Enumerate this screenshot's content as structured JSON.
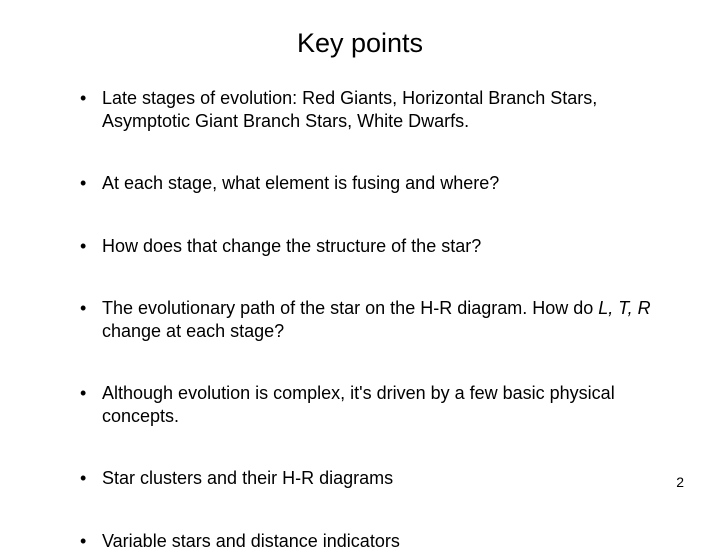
{
  "slide": {
    "title": "Key points",
    "bullets": [
      "Late stages of evolution: Red Giants, Horizontal Branch Stars, Asymptotic Giant Branch Stars, White Dwarfs.",
      "At each stage, what element is fusing and where?",
      "How does that change the structure of the star?",
      "The evolutionary path of the star on the H-R diagram.  How do L, T, R change at each stage?",
      "Although evolution is complex, it's driven by a few basic physical concepts.",
      "Star clusters and their H-R diagrams",
      "Variable stars and distance indicators"
    ],
    "page_number": "2",
    "background_color": "#ffffff",
    "text_color": "#000000",
    "title_fontsize": 27,
    "bullet_fontsize": 18,
    "font_family": "Arial, Helvetica, sans-serif",
    "italic_segments": {
      "bullet_index": 3,
      "before": "The evolutionary path of the star on the H-R diagram.  How do ",
      "italic": "L, T, R",
      "after": " change at each stage?"
    }
  }
}
